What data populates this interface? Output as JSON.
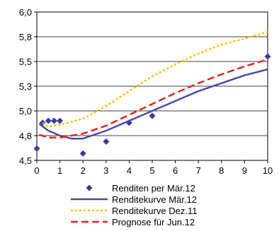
{
  "chart_data": {
    "type": "line",
    "title": "",
    "xlabel": "",
    "ylabel": "",
    "xlim": [
      0,
      10
    ],
    "ylim": [
      4.5,
      6.0
    ],
    "x_ticks": [
      0,
      1,
      2,
      3,
      4,
      5,
      6,
      7,
      8,
      9,
      10
    ],
    "x_tick_labels": [
      "0",
      "1",
      "2",
      "3",
      "4",
      "5",
      "6",
      "7",
      "8",
      "9",
      "10"
    ],
    "y_ticks": [
      4.5,
      4.75,
      5.0,
      5.25,
      5.5,
      5.75,
      6.0
    ],
    "y_tick_labels": [
      "4,5",
      "4,8",
      "5,0",
      "5,3",
      "5,5",
      "5,8",
      "6,0"
    ],
    "grid": "horizontal",
    "legend_position": "bottom",
    "series": [
      {
        "name": "Renditen per Mär.12",
        "kind": "scatter",
        "marker": "diamond",
        "color": "#3a3aa3",
        "x": [
          0,
          0.25,
          0.5,
          0.75,
          1,
          2,
          3,
          4,
          5,
          10
        ],
        "y": [
          4.62,
          4.88,
          4.9,
          4.9,
          4.9,
          4.57,
          4.69,
          4.88,
          4.95,
          5.55
        ]
      },
      {
        "name": "Renditekurve Mär.12",
        "kind": "line",
        "dash": "solid",
        "color": "#4a4aa8",
        "x": [
          0.1,
          0.5,
          1,
          1.5,
          2,
          3,
          4,
          5,
          6,
          7,
          8,
          9,
          10
        ],
        "y": [
          4.87,
          4.8,
          4.75,
          4.72,
          4.72,
          4.8,
          4.9,
          5.0,
          5.1,
          5.2,
          5.28,
          5.36,
          5.42
        ]
      },
      {
        "name": "Renditekurve Dez.11",
        "kind": "line",
        "dash": "dotted",
        "color": "#f2c200",
        "x": [
          0.25,
          0.5,
          1,
          2,
          3,
          4,
          5,
          6,
          7,
          8,
          9,
          10
        ],
        "y": [
          4.88,
          4.84,
          4.86,
          4.92,
          5.05,
          5.2,
          5.35,
          5.47,
          5.58,
          5.67,
          5.73,
          5.8
        ]
      },
      {
        "name": "Prognose für Jun.12",
        "kind": "line",
        "dash": "dashed",
        "color": "#e02424",
        "x": [
          0.1,
          0.5,
          1,
          2,
          3,
          4,
          5,
          6,
          7,
          8,
          9,
          10
        ],
        "y": [
          4.76,
          4.73,
          4.73,
          4.77,
          4.85,
          4.96,
          5.07,
          5.18,
          5.28,
          5.37,
          5.45,
          5.52
        ]
      }
    ]
  }
}
